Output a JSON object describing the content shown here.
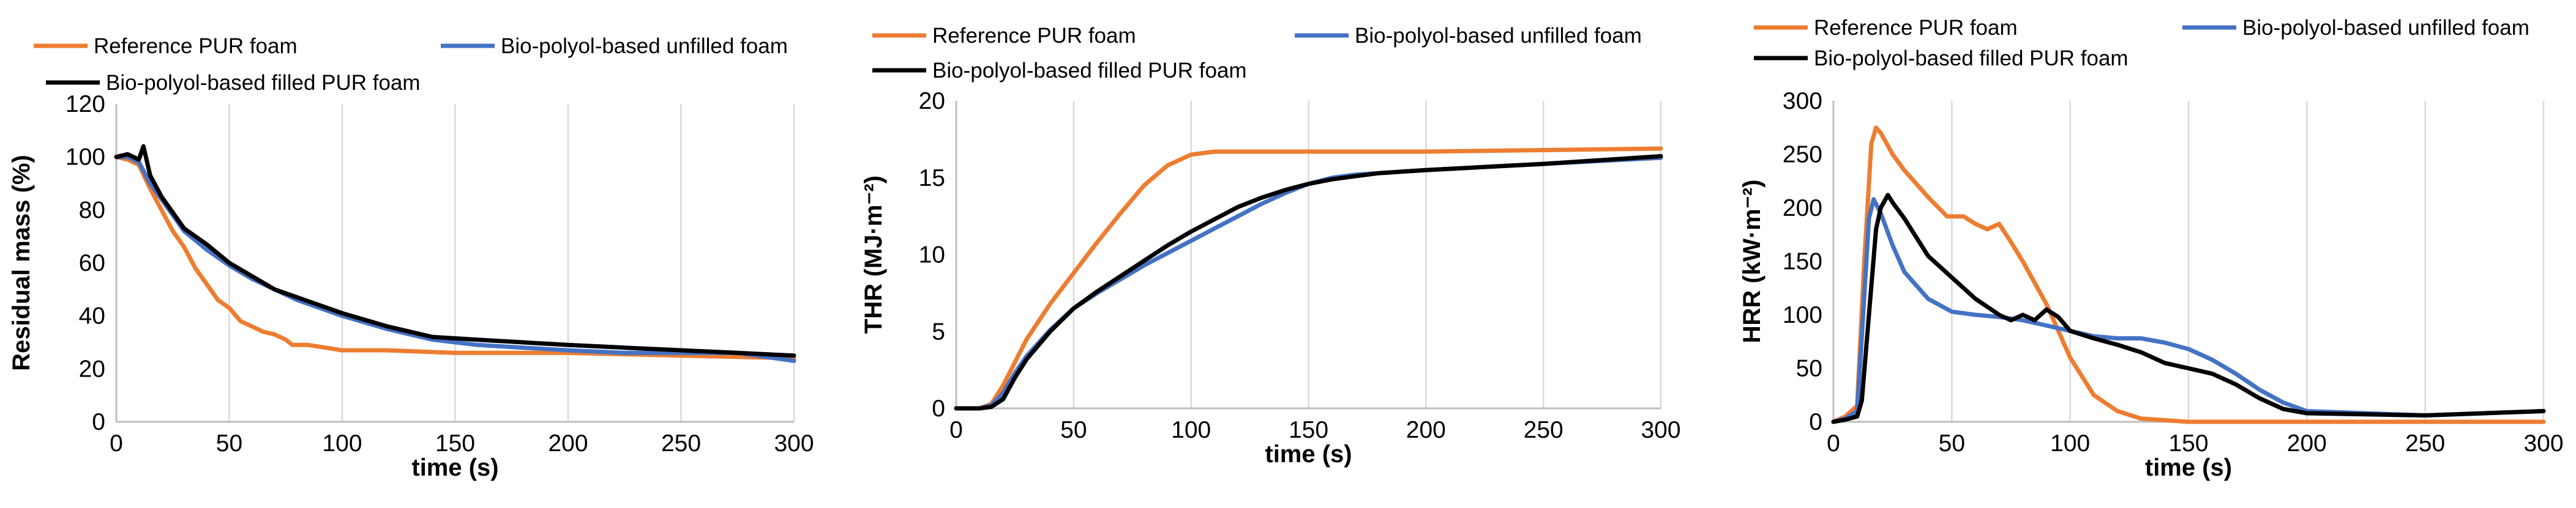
{
  "chart_data": [
    {
      "type": "line",
      "xlabel": "time (s)",
      "ylabel": "Residual mass (%)",
      "xlim": [
        0,
        300
      ],
      "ylim": [
        0,
        120
      ],
      "xticks": [
        0,
        50,
        100,
        150,
        200,
        250,
        300
      ],
      "yticks": [
        0,
        20,
        40,
        60,
        80,
        100,
        120
      ],
      "grid": "vertical",
      "legend": "top",
      "series": [
        {
          "name": "Reference PUR foam",
          "color": "#ED7D31",
          "x": [
            0,
            5,
            10,
            15,
            20,
            25,
            30,
            35,
            40,
            45,
            50,
            55,
            60,
            65,
            70,
            75,
            78,
            85,
            100,
            120,
            150,
            200,
            250,
            300
          ],
          "y": [
            100,
            99,
            97,
            88,
            80,
            72,
            66,
            58,
            52,
            46,
            43,
            38,
            36,
            34,
            33,
            31,
            29,
            29,
            27,
            27,
            26,
            26,
            25,
            24
          ]
        },
        {
          "name": "Bio-polyol-based unfilled foam",
          "color": "#4472C4",
          "x": [
            0,
            5,
            10,
            15,
            20,
            25,
            30,
            40,
            50,
            60,
            70,
            80,
            90,
            100,
            120,
            140,
            160,
            180,
            200,
            225,
            250,
            275,
            300
          ],
          "y": [
            100,
            100,
            98,
            90,
            84,
            78,
            72,
            65,
            59,
            54,
            50,
            46,
            43,
            40,
            35,
            31,
            29,
            28,
            27,
            26,
            26,
            26,
            23
          ]
        },
        {
          "name": "Bio-polyol-based filled PUR foam",
          "color": "#000000",
          "x": [
            0,
            5,
            10,
            12,
            15,
            20,
            25,
            30,
            40,
            50,
            60,
            70,
            80,
            90,
            100,
            120,
            140,
            160,
            180,
            200,
            225,
            250,
            275,
            300
          ],
          "y": [
            100,
            101,
            99,
            104,
            93,
            85,
            79,
            73,
            67,
            60,
            55,
            50,
            47,
            44,
            41,
            36,
            32,
            31,
            30,
            29,
            28,
            27,
            26,
            25
          ]
        }
      ]
    },
    {
      "type": "line",
      "xlabel": "time (s)",
      "ylabel": "THR (MJ·m⁻²)",
      "xlim": [
        0,
        300
      ],
      "ylim": [
        0,
        20
      ],
      "xticks": [
        0,
        50,
        100,
        150,
        200,
        250,
        300
      ],
      "yticks": [
        0,
        5,
        10,
        15,
        20
      ],
      "grid": "vertical",
      "legend": "top",
      "series": [
        {
          "name": "Reference PUR foam",
          "color": "#ED7D31",
          "x": [
            0,
            10,
            15,
            20,
            25,
            30,
            40,
            50,
            60,
            70,
            80,
            90,
            100,
            110,
            120,
            150,
            200,
            250,
            300
          ],
          "y": [
            0,
            0,
            0.3,
            1.5,
            3,
            4.5,
            6.8,
            8.8,
            10.8,
            12.7,
            14.5,
            15.8,
            16.5,
            16.7,
            16.7,
            16.7,
            16.7,
            16.8,
            16.9
          ]
        },
        {
          "name": "Bio-polyol-based unfilled foam",
          "color": "#4472C4",
          "x": [
            0,
            10,
            15,
            20,
            25,
            30,
            40,
            50,
            60,
            70,
            80,
            90,
            100,
            110,
            120,
            130,
            140,
            150,
            160,
            170,
            180,
            200,
            250,
            300
          ],
          "y": [
            0,
            0,
            0.2,
            1,
            2.3,
            3.4,
            5.1,
            6.5,
            7.5,
            8.4,
            9.3,
            10.1,
            10.9,
            11.7,
            12.5,
            13.3,
            14.0,
            14.6,
            15.0,
            15.2,
            15.3,
            15.5,
            15.9,
            16.3
          ]
        },
        {
          "name": "Bio-polyol-based filled PUR foam",
          "color": "#000000",
          "x": [
            0,
            10,
            15,
            20,
            25,
            30,
            40,
            50,
            60,
            70,
            80,
            90,
            100,
            110,
            120,
            130,
            140,
            150,
            160,
            170,
            180,
            200,
            250,
            300
          ],
          "y": [
            0,
            0,
            0.1,
            0.6,
            2,
            3.2,
            5,
            6.5,
            7.6,
            8.6,
            9.6,
            10.6,
            11.5,
            12.3,
            13.1,
            13.7,
            14.2,
            14.6,
            14.9,
            15.1,
            15.3,
            15.5,
            15.9,
            16.4
          ]
        }
      ]
    },
    {
      "type": "line",
      "xlabel": "time (s)",
      "ylabel": "HRR (kW·m⁻²)",
      "xlim": [
        0,
        300
      ],
      "ylim": [
        0,
        300
      ],
      "xticks": [
        0,
        50,
        100,
        150,
        200,
        250,
        300
      ],
      "yticks": [
        0,
        50,
        100,
        150,
        200,
        250,
        300
      ],
      "grid": "vertical",
      "legend": "top",
      "series": [
        {
          "name": "Reference PUR foam",
          "color": "#ED7D31",
          "x": [
            0,
            5,
            10,
            13,
            16,
            18,
            20,
            25,
            30,
            40,
            48,
            55,
            60,
            65,
            70,
            75,
            80,
            90,
            100,
            110,
            120,
            130,
            150,
            200,
            250,
            300
          ],
          "y": [
            0,
            5,
            15,
            150,
            260,
            275,
            270,
            250,
            235,
            210,
            192,
            192,
            185,
            180,
            185,
            168,
            150,
            110,
            60,
            25,
            10,
            3,
            0,
            0,
            0,
            0
          ]
        },
        {
          "name": "Bio-polyol-based unfilled foam",
          "color": "#4472C4",
          "x": [
            0,
            5,
            10,
            12,
            15,
            17,
            20,
            25,
            30,
            40,
            50,
            60,
            70,
            80,
            90,
            100,
            110,
            120,
            130,
            140,
            150,
            160,
            170,
            180,
            190,
            200,
            225,
            250,
            300
          ],
          "y": [
            0,
            3,
            10,
            80,
            190,
            208,
            195,
            165,
            140,
            115,
            103,
            100,
            98,
            95,
            90,
            85,
            80,
            78,
            78,
            74,
            68,
            58,
            45,
            30,
            18,
            10,
            8,
            6,
            10
          ]
        },
        {
          "name": "Bio-polyol-based filled PUR foam",
          "color": "#000000",
          "x": [
            0,
            5,
            10,
            12,
            15,
            18,
            20,
            23,
            25,
            30,
            40,
            50,
            60,
            70,
            75,
            80,
            85,
            90,
            95,
            100,
            110,
            120,
            130,
            140,
            150,
            160,
            170,
            180,
            190,
            200,
            250,
            300
          ],
          "y": [
            0,
            2,
            5,
            20,
            100,
            180,
            200,
            212,
            205,
            190,
            155,
            135,
            115,
            100,
            95,
            100,
            95,
            105,
            98,
            85,
            78,
            72,
            65,
            55,
            50,
            45,
            35,
            22,
            12,
            8,
            6,
            10
          ]
        }
      ]
    }
  ]
}
